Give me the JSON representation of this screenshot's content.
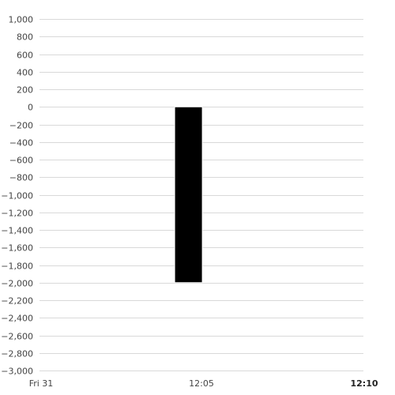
{
  "chart_data": {
    "type": "bar",
    "title": "",
    "xlabel": "",
    "ylabel": "",
    "x_ticks": [
      {
        "label": "Fri 31",
        "pos": 0,
        "bold": false
      },
      {
        "label": "12:05",
        "pos": 0.5,
        "bold": false
      },
      {
        "label": "12:10",
        "pos": 1,
        "bold": true
      }
    ],
    "categories": [
      "12:05"
    ],
    "values": [
      -2000
    ],
    "bar_x": [
      0.46
    ],
    "ylim": [
      -3000,
      1000
    ],
    "y_ticks": [
      1000,
      800,
      600,
      400,
      200,
      0,
      -200,
      -400,
      -600,
      -800,
      -1000,
      -1200,
      -1400,
      -1600,
      -1800,
      -2000,
      -2200,
      -2400,
      -2600,
      -2800,
      -3000
    ],
    "y_tick_labels": [
      "1,000",
      "800",
      "600",
      "400",
      "200",
      "0",
      "−200",
      "−400",
      "−600",
      "−800",
      "−1,000",
      "−1,200",
      "−1,400",
      "−1,600",
      "−1,800",
      "−2,000",
      "−2,200",
      "−2,400",
      "−2,600",
      "−2,800",
      "−3,000"
    ],
    "grid": true,
    "legend": "none",
    "colors": {
      "bar": "#000000",
      "grid": "#d9d9d9",
      "tick_text": "#444444"
    }
  }
}
